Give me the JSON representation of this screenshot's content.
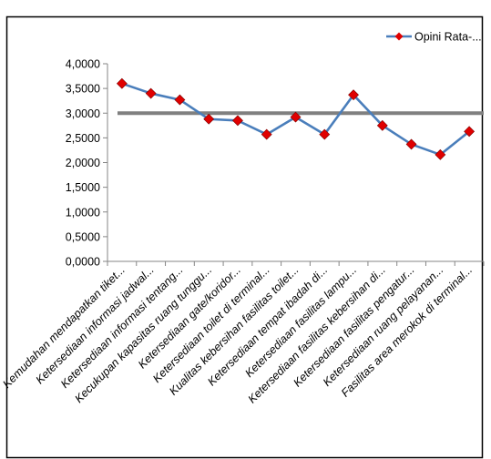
{
  "chart_data": {
    "type": "line",
    "title": "",
    "xlabel": "",
    "ylabel": "",
    "ylim": [
      0,
      4
    ],
    "y_ticks": [
      "0,0000",
      "0,5000",
      "1,0000",
      "1,5000",
      "2,0000",
      "2,5000",
      "3,0000",
      "3,5000",
      "4,0000"
    ],
    "grid": false,
    "legend_position": "top-right",
    "categories": [
      "Kemudahan mendapatkan tiket...",
      "Ketersediaan informasi jadwal...",
      "Ketersediaan informasi tentang...",
      "Kecukupan kapasitas ruang tunggu...",
      "Ketersediaan gate/koridor...",
      "Ketersediaan toilet di terminal...",
      "Kualitas kebersihan fasilitas toilet...",
      "Ketersediaan tempat ibadah di...",
      "Ketersediaan fasilitas lampu...",
      "Ketersediaan fasilitas kebersihan di...",
      "Ketersediaan fasilitas pengatur...",
      "Ketersediaan ruang pelayanan...",
      "Fasilitas area merokok di terminal..."
    ],
    "series": [
      {
        "name": "Opini Rata-...",
        "color": "#4a7ebb",
        "marker": "diamond",
        "marker_color": "#e00000",
        "values": [
          3.6,
          3.4,
          3.27,
          2.88,
          2.85,
          2.57,
          2.92,
          2.57,
          3.37,
          2.75,
          2.37,
          2.16,
          2.63
        ]
      }
    ],
    "reference_line": {
      "value": 3.0,
      "color": "#808080"
    }
  }
}
